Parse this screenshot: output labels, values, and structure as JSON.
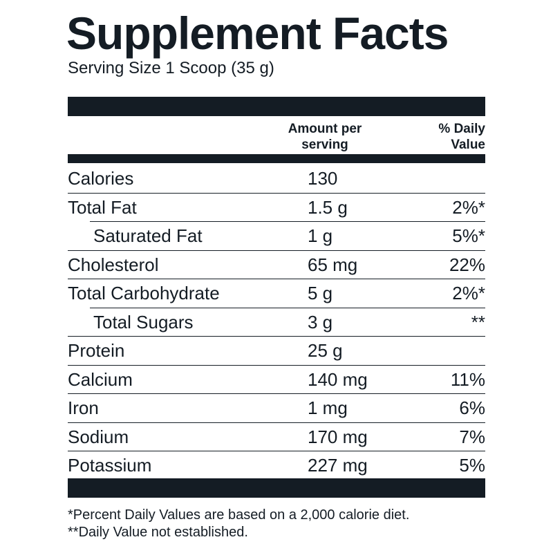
{
  "header": {
    "title": "Supplement Facts",
    "serving_size": "Serving Size 1 Scoop (35 g)"
  },
  "table": {
    "columns": {
      "amount": "Amount per serving",
      "daily_value": "% Daily Value"
    },
    "rows": [
      {
        "name": "Calories",
        "amount": "130"
      },
      {
        "name": "Total Fat",
        "amount": "1.5 g",
        "daily_value": "2%*"
      },
      {
        "name": "Saturated Fat",
        "amount": "1 g",
        "daily_value": "5%*",
        "indent": true
      },
      {
        "name": "Cholesterol",
        "amount": "65 mg",
        "daily_value": "22%"
      },
      {
        "name": "Total Carbohydrate",
        "amount": "5 g",
        "daily_value": "2%*"
      },
      {
        "name": "Total Sugars",
        "amount": "3 g",
        "daily_value": "**",
        "indent": true
      },
      {
        "name": "Protein",
        "amount": "25 g"
      },
      {
        "name": "Calcium",
        "amount": "140 mg",
        "daily_value": "11%"
      },
      {
        "name": "Iron",
        "amount": "1 mg",
        "daily_value": "6%"
      },
      {
        "name": "Sodium",
        "amount": "170 mg",
        "daily_value": "7%"
      },
      {
        "name": "Potassium",
        "amount": "227 mg",
        "daily_value": "5%"
      }
    ]
  },
  "footnotes": [
    "*Percent Daily Values are based on a 2,000 calorie diet.",
    "**Daily Value not established."
  ]
}
